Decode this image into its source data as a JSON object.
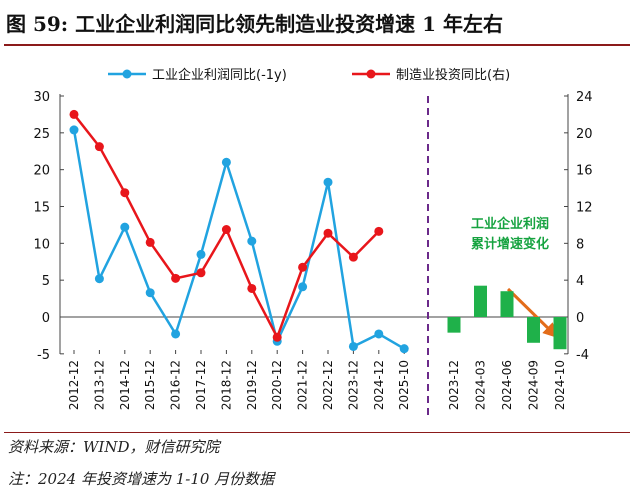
{
  "title": "图 59: 工业企业利润同比领先制造业投资增速 1 年左右",
  "source": "资料来源：WIND，财信研究院",
  "note": "注：2024 年投资增速为 1-10 月份数据",
  "annotation": [
    "工业企业利润",
    "累计增速变化"
  ],
  "colors": {
    "profit": "#21a3e0",
    "investment": "#e8161b",
    "bars": "#1fb14a",
    "divider": "#6b2a8a",
    "arrow": "#e36c1a"
  },
  "chart_data": [
    {
      "type": "line",
      "categories": [
        "2012-12",
        "2013-12",
        "2014-12",
        "2015-12",
        "2016-12",
        "2017-12",
        "2018-12",
        "2019-12",
        "2020-12",
        "2021-12",
        "2022-12",
        "2023-12",
        "2024-12",
        "2025-10"
      ],
      "series": [
        {
          "name": "工业企业利润同比(-1y)",
          "axis": "left",
          "values": [
            25.4,
            5.2,
            12.2,
            3.3,
            -2.3,
            8.5,
            21.0,
            10.3,
            -3.3,
            4.1,
            18.3,
            -4.0,
            -2.3,
            -4.3
          ]
        },
        {
          "name": "制造业投资同比(右)",
          "axis": "right",
          "values": [
            22.0,
            18.5,
            13.5,
            8.1,
            4.2,
            4.8,
            9.5,
            3.1,
            -2.2,
            5.4,
            9.1,
            6.5,
            9.3,
            null
          ]
        }
      ],
      "ylim_left": [
        -5,
        30
      ],
      "yticks_left": [
        "-5",
        "0",
        "5",
        "10",
        "15",
        "20",
        "25",
        "30"
      ],
      "ylim_right": [
        -4,
        24
      ],
      "yticks_right": [
        "-4",
        "0",
        "4",
        "8",
        "12",
        "16",
        "20",
        "24"
      ],
      "legend_position": "top"
    },
    {
      "type": "bar",
      "categories": [
        "2023-12",
        "2024-03",
        "2024-06",
        "2024-09",
        "2024-10"
      ],
      "values": [
        -1.7,
        3.4,
        2.8,
        -2.8,
        -3.5
      ],
      "axis": "right"
    }
  ]
}
